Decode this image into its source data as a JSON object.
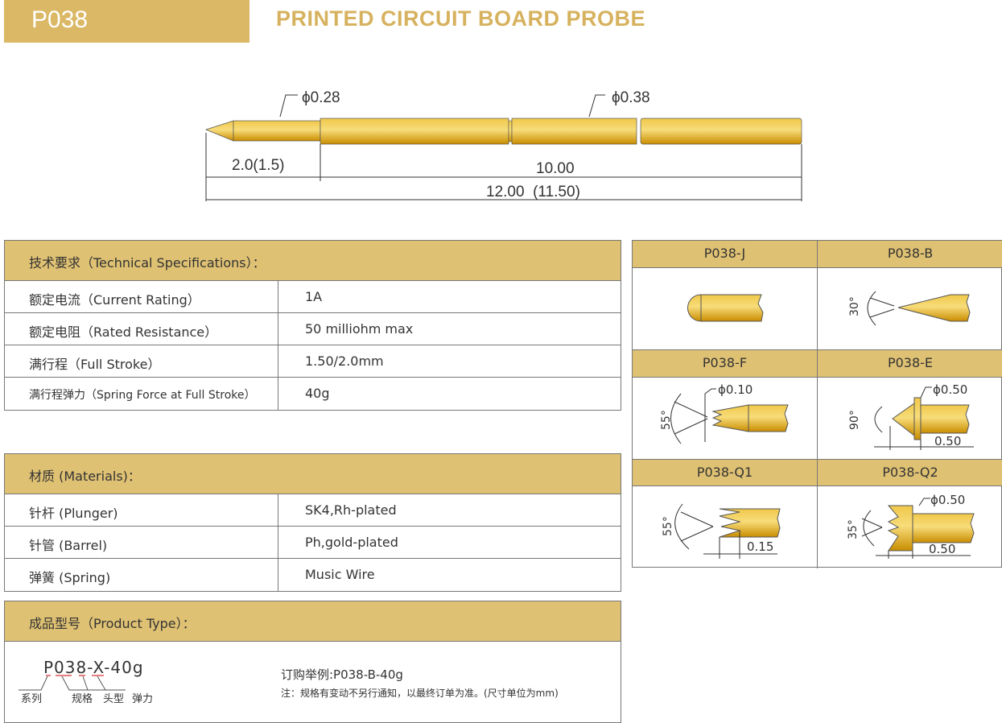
{
  "header": {
    "model": "P038",
    "title": "PRINTED CIRCUIT BOARD  PROBE"
  },
  "drawing": {
    "tip_diameter": "ϕ0.28",
    "barrel_diameter": "ϕ0.38",
    "tip_length": "2.0(1.5)",
    "barrel_length": "10.00",
    "total_length": "12.00  (11.50)",
    "color": "#e0a50a"
  },
  "specs": {
    "title": "技术要求（Technical Specifications）：",
    "rows": [
      {
        "label": "额定电流（Current Rating）",
        "value": "1A"
      },
      {
        "label": "额定电阻（Rated Resistance）",
        "value": "50 milliohm max"
      },
      {
        "label": "满行程（Full Stroke）",
        "value": "1.50/2.0mm"
      },
      {
        "label": "满行程弹力（Spring Force at Full Stroke）",
        "value": "40g"
      }
    ]
  },
  "materials": {
    "title": "材质 (Materials)：",
    "rows": [
      {
        "label": "针杆 (Plunger)",
        "value": "SK4,Rh-plated"
      },
      {
        "label": "针管 (Barrel)",
        "value": "Ph,gold-plated"
      },
      {
        "label": "弹簧 (Spring)",
        "value": "Music Wire"
      }
    ]
  },
  "product_type": {
    "title": "成品型号（Product Type）：",
    "code": "P038-X-40g",
    "parts": [
      "系列",
      "规格",
      "头型",
      "弹力"
    ],
    "example": "订购举例:P038-B-40g",
    "note": "注：规格有变动不另行通知，以最终订单为准。(尺寸单位为mm)"
  },
  "tips": [
    {
      "name": "P038-J"
    },
    {
      "name": "P038-B",
      "angle": "30°"
    },
    {
      "name": "P038-F",
      "angle": "55°",
      "dim": "ϕ0.10"
    },
    {
      "name": "P038-E",
      "angle": "90°",
      "dim": "ϕ0.50",
      "len": "0.50"
    },
    {
      "name": "P038-Q1",
      "angle": "55°",
      "len": "0.15"
    },
    {
      "name": "P038-Q2",
      "angle": "35°",
      "dim": "ϕ0.50",
      "len": "0.50"
    }
  ]
}
